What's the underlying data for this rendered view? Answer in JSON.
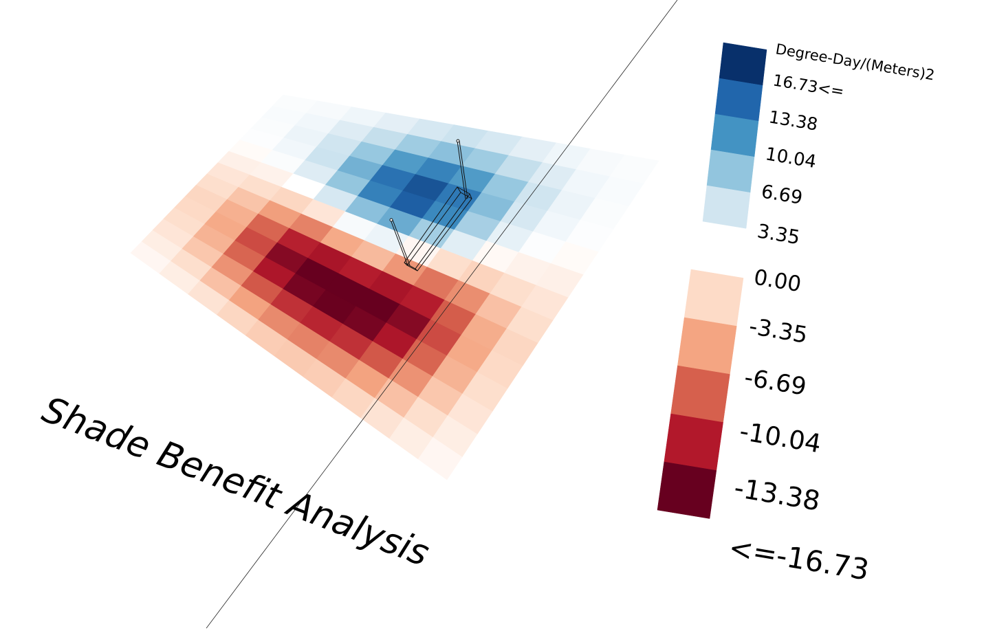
{
  "title": "Shade Benefit Analysis",
  "legend": {
    "unit_label": "Degree-Day/(Meters)2",
    "positive_labels": [
      "16.73<=",
      "13.38",
      "10.04",
      "6.69",
      "3.35"
    ],
    "positive_colors": [
      "#08306b",
      "#2166ac",
      "#4393c3",
      "#92c5de",
      "#d1e5f0"
    ],
    "negative_labels": [
      "0.00",
      "-3.35",
      "-6.69",
      "-10.04",
      "-13.38",
      "<=-16.73"
    ],
    "negative_colors": [
      "#fddbc7",
      "#f4a582",
      "#d6604d",
      "#b2182b",
      "#67001f"
    ]
  },
  "chart_data": {
    "type": "heatmap",
    "value_unit": "Degree-Day/(Meters)2",
    "value_range": [
      -16.73,
      16.73
    ],
    "grid": [
      [
        0.4,
        0.6,
        1.2,
        2.0,
        3.0,
        3.6,
        3.0,
        2.0,
        1.2,
        0.6,
        0.4
      ],
      [
        0.5,
        1.0,
        2.4,
        4.0,
        6.0,
        7.0,
        6.0,
        4.0,
        2.4,
        1.0,
        0.5
      ],
      [
        0.4,
        1.4,
        3.4,
        6.4,
        9.5,
        11.2,
        9.5,
        6.4,
        3.4,
        1.4,
        0.4
      ],
      [
        0.2,
        1.0,
        3.6,
        8.0,
        12.5,
        14.5,
        12.0,
        7.2,
        3.0,
        1.0,
        0.2
      ],
      [
        -0.4,
        0.4,
        2.4,
        6.6,
        11.4,
        13.8,
        10.8,
        5.6,
        1.8,
        0.2,
        -0.4
      ],
      [
        -1.4,
        -1.2,
        0.0,
        3.0,
        7.0,
        8.4,
        5.8,
        2.2,
        -0.6,
        -1.2,
        -1.4
      ],
      [
        -2.4,
        -3.0,
        -3.6,
        -2.4,
        0.6,
        1.4,
        -0.8,
        -3.0,
        -3.8,
        -3.0,
        -2.4
      ],
      [
        -3.0,
        -4.8,
        -7.0,
        -8.4,
        -6.4,
        -5.4,
        -7.4,
        -9.0,
        -7.8,
        -5.0,
        -3.0
      ],
      [
        -3.6,
        -6.0,
        -9.8,
        -13.0,
        -13.8,
        -13.2,
        -13.8,
        -13.2,
        -10.2,
        -6.2,
        -3.6
      ],
      [
        -3.4,
        -6.4,
        -11.0,
        -15.4,
        -17.6,
        -18.0,
        -17.6,
        -15.4,
        -11.0,
        -6.4,
        -3.4
      ],
      [
        -3.0,
        -5.8,
        -9.8,
        -13.6,
        -16.0,
        -16.6,
        -16.0,
        -13.6,
        -9.8,
        -5.8,
        -3.0
      ],
      [
        -2.4,
        -4.6,
        -7.6,
        -10.4,
        -12.2,
        -12.8,
        -12.2,
        -10.4,
        -7.6,
        -4.6,
        -2.4
      ],
      [
        -1.6,
        -3.0,
        -5.0,
        -6.8,
        -8.0,
        -8.4,
        -8.0,
        -6.8,
        -5.0,
        -3.0,
        -1.6
      ],
      [
        -0.8,
        -1.6,
        -2.6,
        -3.6,
        -4.2,
        -4.4,
        -4.2,
        -3.6,
        -2.6,
        -1.6,
        -0.8
      ]
    ]
  }
}
